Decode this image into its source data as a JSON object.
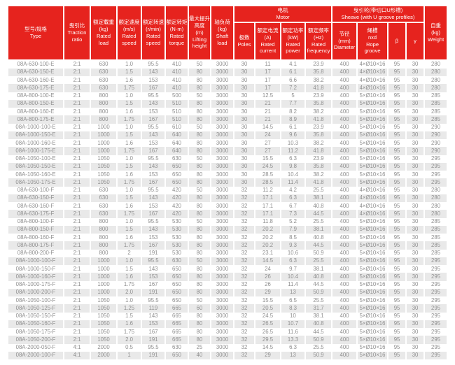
{
  "colors": {
    "header_red": "#e6231e",
    "stripe_gray": "#e9e9e9",
    "body_text": "#8f8f8f",
    "header_text": "#ffffff"
  },
  "table": {
    "groups": {
      "motor": "电机\nMotor",
      "sheave": "曳引轮(带切口U形槽)\nSheave (with U groove profiles)"
    },
    "columns": {
      "type": "型号/规格\nType",
      "traction": "曳引比\nTraction\nratio",
      "load": "额定载重\n(kg)\nRated\nload",
      "speed": "额定速度\n(m/s)\nRated\nspeed",
      "rpm": "额定转速\n(r/min)\nRated\nspeed",
      "torque": "额定转矩\n(N·m)\nRated\ntorque",
      "height": "最大提升\n高度\n(m)\nLifting\nheight",
      "shaft": "轴负荷\n(kg)\nShaft\nload",
      "poles": "极数\nPoles",
      "current": "额定电流\n(A)\nRated\ncurrent",
      "power": "额定功率\n(kW)\nRated\npower",
      "freq": "额定频率\n(Hz)\nRated\nfrequency",
      "diameter": "节径\n(mm)\nDiameter",
      "rope": "绳槽\nnxd\nRope groove",
      "beta": "β",
      "gamma": "γ",
      "weight": "自重\n(kg)\nWeight"
    },
    "rows": [
      [
        "08A-630-100-E",
        "2:1",
        "630",
        "1.0",
        "95.5",
        "410",
        "50",
        "3000",
        "30",
        "11",
        "4.1",
        "23.9",
        "400",
        "4×Ø10×16",
        "95",
        "30",
        "280"
      ],
      [
        "08A-630-150-E",
        "2:1",
        "630",
        "1.5",
        "143",
        "410",
        "80",
        "3000",
        "30",
        "17",
        "6.1",
        "35.8",
        "400",
        "4×Ø10×16",
        "95",
        "30",
        "280"
      ],
      [
        "08A-630-160-E",
        "2:1",
        "630",
        "1.6",
        "153",
        "410",
        "80",
        "3000",
        "30",
        "17",
        "6.6",
        "38.2",
        "400",
        "4×Ø10×16",
        "95",
        "30",
        "280"
      ],
      [
        "08A-630-175-E",
        "2:1",
        "630",
        "1.75",
        "167",
        "410",
        "80",
        "3000",
        "30",
        "17",
        "7.2",
        "41.8",
        "400",
        "4×Ø10×16",
        "95",
        "30",
        "280"
      ],
      [
        "08A-800-100-E",
        "2:1",
        "800",
        "1.0",
        "95.5",
        "500",
        "50",
        "3000",
        "30",
        "12.5",
        "5",
        "23.9",
        "400",
        "5×Ø10×16",
        "95",
        "30",
        "285"
      ],
      [
        "08A-800-150-E",
        "2:1",
        "800",
        "1.5",
        "143",
        "510",
        "80",
        "3000",
        "30",
        "21",
        "7.7",
        "35.8",
        "400",
        "5×Ø10×16",
        "95",
        "30",
        "285"
      ],
      [
        "08A-800-160-E",
        "2:1",
        "800",
        "1.6",
        "153",
        "510",
        "80",
        "3000",
        "30",
        "21",
        "8.2",
        "38.2",
        "400",
        "5×Ø10×16",
        "95",
        "30",
        "285"
      ],
      [
        "08A-800-175-E",
        "2:1",
        "800",
        "1.75",
        "167",
        "510",
        "80",
        "3000",
        "30",
        "21",
        "8.9",
        "41.8",
        "400",
        "5×Ø10×16",
        "95",
        "30",
        "285"
      ],
      [
        "08A-1000-100-E",
        "2:1",
        "1000",
        "1.0",
        "95.5",
        "610",
        "50",
        "3000",
        "30",
        "14.5",
        "6.1",
        "23.9",
        "400",
        "5×Ø10×16",
        "95",
        "30",
        "290"
      ],
      [
        "08A-1000-150-E",
        "2:1",
        "1000",
        "1.5",
        "143",
        "640",
        "80",
        "3000",
        "30",
        "24",
        "9.6",
        "35.8",
        "400",
        "5×Ø10×16",
        "95",
        "30",
        "290"
      ],
      [
        "08A-1000-160-E",
        "2:1",
        "1000",
        "1.6",
        "153",
        "640",
        "80",
        "3000",
        "30",
        "27",
        "10.3",
        "38.2",
        "400",
        "5×Ø10×16",
        "95",
        "30",
        "290"
      ],
      [
        "08A-1000-175-E",
        "2:1",
        "1000",
        "1.75",
        "167",
        "640",
        "80",
        "3000",
        "30",
        "27",
        "11.2",
        "41.8",
        "400",
        "5×Ø10×16",
        "95",
        "30",
        "290"
      ],
      [
        "08A-1050-100-E",
        "2:1",
        "1050",
        "1.0",
        "95.5",
        "630",
        "50",
        "3000",
        "30",
        "15.5",
        "6.3",
        "23.9",
        "400",
        "5×Ø10×16",
        "95",
        "30",
        "295"
      ],
      [
        "08A-1050-150-E",
        "2:1",
        "1050",
        "1.5",
        "143",
        "650",
        "80",
        "3000",
        "30",
        "24.5",
        "9.8",
        "35.8",
        "400",
        "5×Ø10×16",
        "95",
        "30",
        "295"
      ],
      [
        "08A-1050-160-E",
        "2:1",
        "1050",
        "1.6",
        "153",
        "650",
        "80",
        "3000",
        "30",
        "28.5",
        "10.4",
        "38.2",
        "400",
        "5×Ø10×16",
        "95",
        "30",
        "295"
      ],
      [
        "08A-1050-175-E",
        "2:1",
        "1050",
        "1.75",
        "167",
        "650",
        "80",
        "3000",
        "30",
        "28.5",
        "11.4",
        "41.8",
        "400",
        "5×Ø10×16",
        "95",
        "30",
        "295"
      ],
      [
        "08A-630-100-F",
        "2:1",
        "630",
        "1.0",
        "95.5",
        "420",
        "50",
        "3000",
        "32",
        "11.2",
        "4.2",
        "25.5",
        "400",
        "4×Ø10×16",
        "95",
        "30",
        "280"
      ],
      [
        "08A-630-150-F",
        "2:1",
        "630",
        "1.5",
        "143",
        "420",
        "80",
        "3000",
        "32",
        "17.1",
        "6.3",
        "38.1",
        "400",
        "4×Ø10×16",
        "95",
        "30",
        "280"
      ],
      [
        "08A-630-160-F",
        "2:1",
        "630",
        "1.6",
        "153",
        "420",
        "80",
        "3000",
        "32",
        "17.1",
        "6.7",
        "40.8",
        "400",
        "4×Ø10×16",
        "95",
        "30",
        "280"
      ],
      [
        "08A-630-175-F",
        "2:1",
        "630",
        "1.75",
        "167",
        "420",
        "80",
        "3000",
        "32",
        "17.1",
        "7.3",
        "44.5",
        "400",
        "4×Ø10×16",
        "95",
        "30",
        "280"
      ],
      [
        "08A-800-100-F",
        "2:1",
        "800",
        "1.0",
        "95.5",
        "530",
        "50",
        "3000",
        "32",
        "11.8",
        "5.2",
        "25.5",
        "400",
        "5×Ø10×16",
        "95",
        "30",
        "285"
      ],
      [
        "08A-800-150-F",
        "2:1",
        "800",
        "1.5",
        "143",
        "530",
        "80",
        "3000",
        "32",
        "20.2",
        "7.9",
        "38.1",
        "400",
        "5×Ø10×16",
        "95",
        "30",
        "285"
      ],
      [
        "08A-800-160-F",
        "2:1",
        "800",
        "1.6",
        "153",
        "530",
        "80",
        "3000",
        "32",
        "20.2",
        "8.5",
        "40.8",
        "400",
        "5×Ø10×16",
        "95",
        "30",
        "285"
      ],
      [
        "08A-800-175-F",
        "2:1",
        "800",
        "1.75",
        "167",
        "530",
        "80",
        "3000",
        "32",
        "20.2",
        "9.3",
        "44.5",
        "400",
        "5×Ø10×16",
        "95",
        "30",
        "285"
      ],
      [
        "08A-800-200-F",
        "2:1",
        "800",
        "2",
        "191",
        "530",
        "80",
        "3000",
        "32",
        "23.1",
        "10.6",
        "50.9",
        "400",
        "5×Ø10×16",
        "95",
        "30",
        "285"
      ],
      [
        "08A-1000-100-F",
        "2:1",
        "1000",
        "1.0",
        "95.5",
        "630",
        "50",
        "3000",
        "32",
        "14.5",
        "6.3",
        "25.5",
        "400",
        "5×Ø10×16",
        "95",
        "30",
        "295"
      ],
      [
        "08A-1000-150-F",
        "2:1",
        "1000",
        "1.5",
        "143",
        "650",
        "80",
        "3000",
        "32",
        "24",
        "9.7",
        "38.1",
        "400",
        "5×Ø10×16",
        "95",
        "30",
        "295"
      ],
      [
        "08A-1000-160-F",
        "2:1",
        "1000",
        "1.6",
        "153",
        "650",
        "80",
        "3000",
        "32",
        "26",
        "10.4",
        "40.8",
        "400",
        "5×Ø10×16",
        "95",
        "30",
        "295"
      ],
      [
        "08A-1000-175-F",
        "2:1",
        "1000",
        "1.75",
        "167",
        "650",
        "80",
        "3000",
        "32",
        "26",
        "11.4",
        "44.5",
        "400",
        "5×Ø10×16",
        "95",
        "30",
        "295"
      ],
      [
        "08A-1000-200-F",
        "2:1",
        "1000",
        "2.0",
        "191",
        "650",
        "80",
        "3000",
        "32",
        "29",
        "13",
        "50.9",
        "400",
        "5×Ø10×16",
        "95",
        "30",
        "295"
      ],
      [
        "08A-1050-100-F",
        "2:1",
        "1050",
        "1.0",
        "95.5",
        "650",
        "50",
        "3000",
        "32",
        "15.5",
        "6.5",
        "25.5",
        "400",
        "5×Ø10×16",
        "95",
        "30",
        "295"
      ],
      [
        "08A-1050-125-F",
        "2:1",
        "1050",
        "1.25",
        "119",
        "665",
        "60",
        "3000",
        "32",
        "20.5",
        "8.3",
        "31.7",
        "400",
        "5×Ø10×16",
        "95",
        "30",
        "295"
      ],
      [
        "08A-1050-150-F",
        "2:1",
        "1050",
        "1.5",
        "143",
        "665",
        "80",
        "3000",
        "32",
        "24.5",
        "10",
        "38.1",
        "400",
        "5×Ø10×16",
        "95",
        "30",
        "295"
      ],
      [
        "08A-1050-160-F",
        "2:1",
        "1050",
        "1.6",
        "153",
        "665",
        "80",
        "3000",
        "32",
        "26.5",
        "10.7",
        "40.8",
        "400",
        "5×Ø10×16",
        "95",
        "30",
        "295"
      ],
      [
        "08A-1050-175-F",
        "2:1",
        "1050",
        "1.75",
        "167",
        "665",
        "80",
        "3000",
        "32",
        "26.5",
        "11.6",
        "44.5",
        "400",
        "5×Ø10×16",
        "95",
        "30",
        "295"
      ],
      [
        "08A-1050-200-F",
        "2:1",
        "1050",
        "2.0",
        "191",
        "665",
        "80",
        "3000",
        "32",
        "29.5",
        "13.3",
        "50.9",
        "400",
        "5×Ø10×16",
        "95",
        "30",
        "295"
      ],
      [
        "08A-2000-050-F",
        "4:1",
        "2000",
        "0.5",
        "95.5",
        "630",
        "25",
        "3000",
        "32",
        "14.5",
        "6.3",
        "25.5",
        "400",
        "5×Ø10×16",
        "95",
        "30",
        "295"
      ],
      [
        "08A-2000-100-F",
        "4:1",
        "2000",
        "1",
        "191",
        "650",
        "40",
        "3000",
        "32",
        "29",
        "13",
        "50.9",
        "400",
        "5×Ø10×16",
        "95",
        "30",
        "295"
      ]
    ]
  }
}
